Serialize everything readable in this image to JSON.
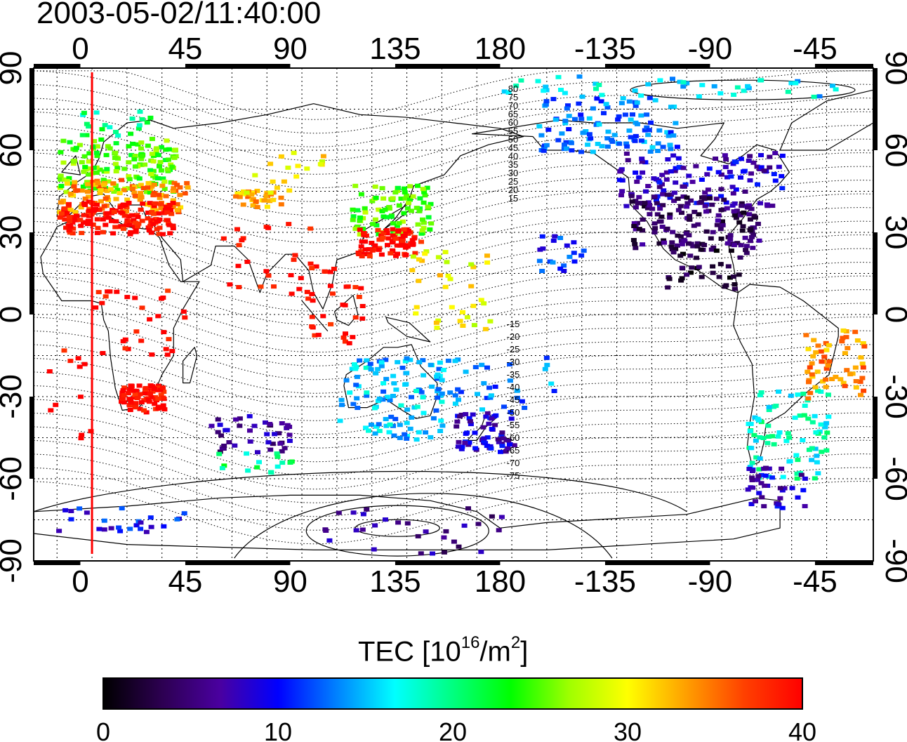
{
  "title": "2003-05-02/11:40:00",
  "colorbar": {
    "label_prefix": "TEC  [10",
    "label_exp1": "16",
    "label_mid": "/m",
    "label_exp2": "2",
    "label_suffix": "]",
    "ticks": [
      "0",
      "10",
      "20",
      "30",
      "40"
    ],
    "min": 0,
    "max": 40,
    "colormap": [
      "#000000",
      "#2c0050",
      "#4a00a0",
      "#0000ff",
      "#0080ff",
      "#00ffff",
      "#00ff80",
      "#00ff00",
      "#a0ff00",
      "#ffff00",
      "#ffa000",
      "#ff4000",
      "#ff0000"
    ]
  },
  "map": {
    "projection": "equirectangular",
    "lon_range": [
      -20,
      340
    ],
    "lat_range": [
      -90,
      90
    ],
    "top_lon_labels": [
      "0",
      "45",
      "90",
      "135",
      "180",
      "-135",
      "-90",
      "-45"
    ],
    "bottom_lon_labels": [
      "0",
      "45",
      "90",
      "135",
      "180",
      "-135",
      "-90",
      "-45"
    ],
    "left_lat_labels": [
      "90",
      "60",
      "30",
      "0",
      "-30",
      "-60",
      "-90"
    ],
    "right_lat_labels": [
      "90",
      "60",
      "30",
      "0",
      "-30",
      "-60",
      "-90"
    ],
    "grid": true,
    "coastlines": true,
    "terminator_line": {
      "lon": 5,
      "color": "#ff0000"
    },
    "magnetic_contour_labels": [
      "80",
      "75",
      "70",
      "65",
      "60",
      "55",
      "50",
      "45",
      "40",
      "35",
      "30",
      "25",
      "20",
      "15",
      "-15",
      "-20",
      "-25",
      "-30",
      "-35",
      "-40",
      "-45",
      "-50",
      "-55",
      "-60",
      "-65",
      "-70",
      "-75"
    ]
  },
  "tec_clusters": [
    {
      "lon": [
        -10,
        40
      ],
      "lat": [
        45,
        65
      ],
      "tec": 25,
      "n": 160
    },
    {
      "lon": [
        -10,
        45
      ],
      "lat": [
        38,
        50
      ],
      "tec": 34,
      "n": 110
    },
    {
      "lon": [
        -10,
        40
      ],
      "lat": [
        30,
        42
      ],
      "tec": 40,
      "n": 150
    },
    {
      "lon": [
        -5,
        30
      ],
      "lat": [
        66,
        75
      ],
      "tec": 20,
      "n": 20
    },
    {
      "lon": [
        65,
        85
      ],
      "lat": [
        40,
        46
      ],
      "tec": 33,
      "n": 35
    },
    {
      "lon": [
        70,
        110
      ],
      "lat": [
        45,
        60
      ],
      "tec": 30,
      "n": 18
    },
    {
      "lon": [
        60,
        110
      ],
      "lat": [
        8,
        35
      ],
      "tec": 40,
      "n": 30
    },
    {
      "lon": [
        95,
        120
      ],
      "lat": [
        -10,
        12
      ],
      "tec": 40,
      "n": 28
    },
    {
      "lon": [
        115,
        150
      ],
      "lat": [
        30,
        48
      ],
      "tec": 25,
      "n": 90
    },
    {
      "lon": [
        118,
        145
      ],
      "lat": [
        22,
        32
      ],
      "tec": 40,
      "n": 80
    },
    {
      "lon": [
        140,
        175
      ],
      "lat": [
        -5,
        25
      ],
      "tec": 30,
      "n": 35
    },
    {
      "lon": [
        5,
        45
      ],
      "lat": [
        -15,
        10
      ],
      "tec": 40,
      "n": 30
    },
    {
      "lon": [
        15,
        35
      ],
      "lat": [
        -35,
        -25
      ],
      "tec": 40,
      "n": 90
    },
    {
      "lon": [
        -15,
        5
      ],
      "lat": [
        -45,
        -10
      ],
      "tec": 40,
      "n": 12
    },
    {
      "lon": [
        110,
        155
      ],
      "lat": [
        -45,
        -15
      ],
      "tec": 15,
      "n": 110
    },
    {
      "lon": [
        160,
        185
      ],
      "lat": [
        -50,
        -35
      ],
      "tec": 8,
      "n": 60
    },
    {
      "lon": [
        150,
        205
      ],
      "lat": [
        -35,
        -15
      ],
      "tec": 13,
      "n": 40
    },
    {
      "lon": [
        55,
        90
      ],
      "lat": [
        -50,
        -35
      ],
      "tec": 6,
      "n": 40
    },
    {
      "lon": [
        55,
        90
      ],
      "lat": [
        -57,
        -50
      ],
      "tec": 20,
      "n": 15
    },
    {
      "lon": [
        -15,
        45
      ],
      "lat": [
        -80,
        -70
      ],
      "tec": 10,
      "n": 25
    },
    {
      "lon": [
        100,
        180
      ],
      "lat": [
        -87,
        -70
      ],
      "tec": 6,
      "n": 30
    },
    {
      "lon": [
        195,
        255
      ],
      "lat": [
        60,
        80
      ],
      "tec": 13,
      "n": 110
    },
    {
      "lon": [
        230,
        300
      ],
      "lat": [
        40,
        60
      ],
      "tec": 8,
      "n": 120
    },
    {
      "lon": [
        235,
        290
      ],
      "lat": [
        25,
        45
      ],
      "tec": 4,
      "n": 150
    },
    {
      "lon": [
        250,
        285
      ],
      "lat": [
        10,
        25
      ],
      "tec": 2,
      "n": 40
    },
    {
      "lon": [
        180,
        330
      ],
      "lat": [
        80,
        88
      ],
      "tec": 16,
      "n": 45
    },
    {
      "lon": [
        285,
        320
      ],
      "lat": [
        -60,
        -25
      ],
      "tec": 18,
      "n": 80
    },
    {
      "lon": [
        310,
        335
      ],
      "lat": [
        -30,
        -5
      ],
      "tec": 34,
      "n": 60
    },
    {
      "lon": [
        285,
        310
      ],
      "lat": [
        -70,
        -55
      ],
      "tec": 8,
      "n": 40
    },
    {
      "lon": [
        195,
        215
      ],
      "lat": [
        15,
        30
      ],
      "tec": 11,
      "n": 20
    }
  ]
}
